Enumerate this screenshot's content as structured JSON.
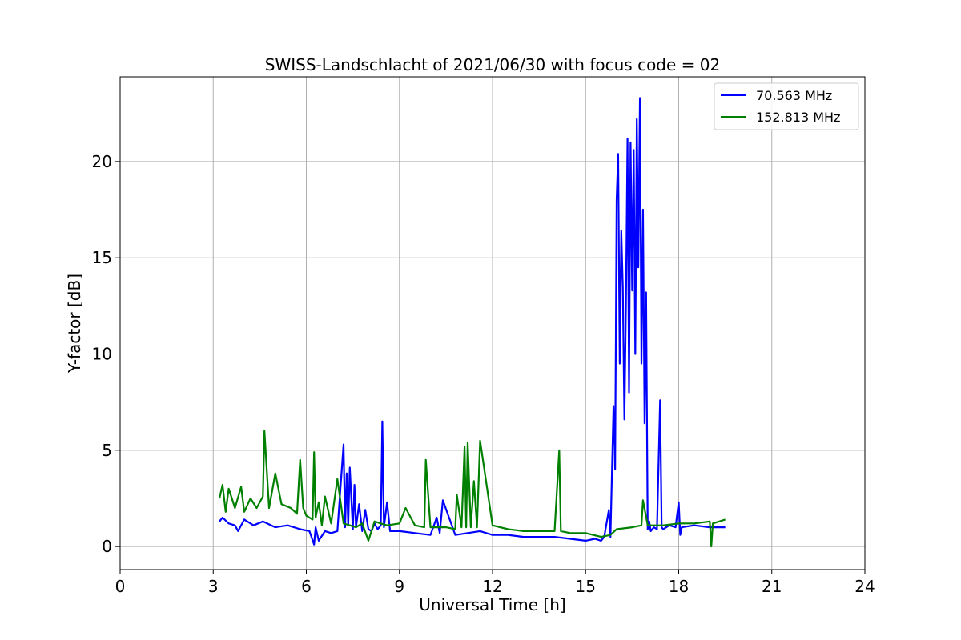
{
  "chart_data": {
    "type": "line",
    "title": "SWISS-Landschlacht of 2021/06/30 with focus code = 02",
    "xlabel": "Universal Time [h]",
    "ylabel": "Y-factor [dB]",
    "xlim": [
      0,
      24
    ],
    "ylim": [
      -1.2,
      24.4
    ],
    "xticks": [
      0,
      3,
      6,
      9,
      12,
      15,
      18,
      21,
      24
    ],
    "yticks": [
      0,
      5,
      10,
      15,
      20
    ],
    "grid": true,
    "legend_position": "top-right",
    "series": [
      {
        "name": "70.563 MHz",
        "color": "#0000ff",
        "x": [
          3.2,
          3.3,
          3.5,
          3.7,
          3.8,
          4.0,
          4.3,
          4.6,
          5.0,
          5.4,
          5.8,
          6.1,
          6.25,
          6.3,
          6.4,
          6.6,
          6.8,
          7.0,
          7.2,
          7.25,
          7.3,
          7.35,
          7.4,
          7.5,
          7.55,
          7.6,
          7.7,
          7.8,
          7.9,
          8.0,
          8.1,
          8.2,
          8.3,
          8.4,
          8.45,
          8.5,
          8.6,
          8.7,
          9.0,
          9.5,
          10.0,
          10.2,
          10.3,
          10.4,
          10.8,
          11.2,
          11.6,
          12.0,
          12.5,
          13.0,
          13.5,
          14.0,
          14.5,
          15.0,
          15.3,
          15.5,
          15.6,
          15.75,
          15.8,
          15.9,
          15.95,
          16.0,
          16.05,
          16.1,
          16.15,
          16.2,
          16.25,
          16.3,
          16.35,
          16.4,
          16.45,
          16.5,
          16.55,
          16.6,
          16.65,
          16.7,
          16.75,
          16.8,
          16.85,
          16.9,
          16.95,
          17.0,
          17.05,
          17.1,
          17.2,
          17.3,
          17.4,
          17.45,
          17.5,
          17.7,
          17.9,
          18.0,
          18.05,
          18.1,
          18.5,
          19.0,
          19.5
        ],
        "y": [
          1.3,
          1.5,
          1.2,
          1.1,
          0.8,
          1.4,
          1.1,
          1.3,
          1.0,
          1.1,
          0.9,
          0.8,
          0.1,
          1.0,
          0.3,
          0.8,
          0.7,
          0.8,
          5.3,
          1.0,
          3.8,
          1.1,
          4.1,
          0.9,
          3.2,
          1.0,
          2.2,
          0.8,
          1.9,
          0.9,
          0.8,
          1.2,
          0.9,
          1.1,
          6.5,
          1.0,
          2.3,
          0.8,
          0.8,
          0.7,
          0.6,
          1.5,
          0.7,
          2.4,
          0.6,
          0.7,
          0.8,
          0.6,
          0.6,
          0.5,
          0.5,
          0.5,
          0.4,
          0.3,
          0.4,
          0.3,
          0.5,
          1.9,
          0.5,
          7.3,
          4.0,
          18.0,
          20.4,
          9.5,
          16.4,
          13.5,
          6.6,
          12.5,
          21.2,
          8.0,
          21.0,
          13.3,
          20.6,
          10.0,
          22.2,
          14.5,
          23.3,
          9.5,
          17.5,
          6.4,
          13.2,
          0.9,
          1.3,
          0.8,
          1.0,
          0.9,
          7.6,
          1.0,
          0.9,
          1.1,
          1.0,
          2.3,
          0.6,
          1.0,
          1.1,
          1.0,
          1.0
        ]
      },
      {
        "name": "152.813 MHz",
        "color": "#008000",
        "x": [
          3.2,
          3.3,
          3.4,
          3.5,
          3.7,
          3.9,
          4.0,
          4.2,
          4.4,
          4.6,
          4.65,
          4.8,
          5.0,
          5.2,
          5.5,
          5.7,
          5.8,
          5.9,
          6.0,
          6.2,
          6.25,
          6.3,
          6.4,
          6.5,
          6.6,
          6.8,
          7.0,
          7.2,
          7.4,
          7.6,
          7.8,
          8.0,
          8.2,
          8.4,
          8.6,
          9.0,
          9.2,
          9.5,
          9.8,
          9.85,
          10.0,
          10.5,
          10.8,
          10.85,
          11.0,
          11.1,
          11.15,
          11.2,
          11.3,
          11.4,
          11.5,
          11.6,
          12.0,
          12.5,
          13.0,
          13.5,
          14.0,
          14.15,
          14.2,
          14.5,
          15.0,
          15.5,
          15.8,
          16.0,
          16.5,
          16.8,
          16.85,
          17.0,
          17.5,
          18.0,
          18.5,
          19.0,
          19.05,
          19.1,
          19.5
        ],
        "y": [
          2.5,
          3.2,
          1.8,
          3.0,
          2.0,
          3.1,
          1.8,
          2.5,
          2.0,
          2.6,
          6.0,
          2.0,
          3.8,
          2.2,
          2.0,
          1.7,
          4.5,
          2.0,
          1.6,
          1.4,
          4.9,
          1.5,
          2.3,
          1.1,
          2.6,
          1.2,
          3.5,
          1.2,
          1.1,
          1.0,
          1.2,
          0.3,
          1.3,
          1.2,
          1.1,
          1.2,
          2.0,
          1.1,
          1.0,
          4.5,
          1.0,
          1.0,
          0.9,
          2.7,
          1.0,
          5.2,
          1.0,
          5.4,
          1.0,
          3.4,
          1.0,
          5.5,
          1.1,
          0.9,
          0.8,
          0.8,
          0.8,
          5.0,
          0.8,
          0.7,
          0.7,
          0.5,
          0.6,
          0.9,
          1.0,
          1.1,
          2.4,
          1.1,
          1.1,
          1.2,
          1.2,
          1.3,
          0.0,
          1.2,
          1.4
        ]
      }
    ]
  }
}
